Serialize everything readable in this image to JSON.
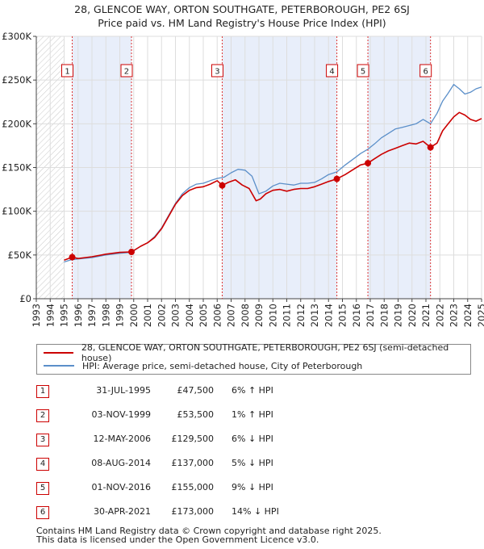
{
  "title_line1": "28, GLENCOE WAY, ORTON SOUTHGATE, PETERBOROUGH, PE2 6SJ",
  "title_line2": "Price paid vs. HM Land Registry's House Price Index (HPI)",
  "chart_data": {
    "type": "line",
    "ylim": [
      0,
      300000
    ],
    "xlim": [
      1993.0,
      2025.0
    ],
    "y_ticks": [
      0,
      50000,
      100000,
      150000,
      200000,
      250000,
      300000
    ],
    "y_tick_labels": [
      "£0",
      "£50K",
      "£100K",
      "£150K",
      "£200K",
      "£250K",
      "£300K"
    ],
    "x_ticks": [
      1993,
      1994,
      1995,
      1996,
      1997,
      1998,
      1999,
      2000,
      2001,
      2002,
      2003,
      2004,
      2005,
      2006,
      2007,
      2008,
      2009,
      2010,
      2011,
      2012,
      2013,
      2014,
      2015,
      2016,
      2017,
      2018,
      2019,
      2020,
      2021,
      2022,
      2023,
      2024,
      2025
    ],
    "x_tick_labels": [
      "1993",
      "1994",
      "1995",
      "1996",
      "1997",
      "1998",
      "1999",
      "2000",
      "2001",
      "2002",
      "2003",
      "2004",
      "2005",
      "2006",
      "2007",
      "2008",
      "2009",
      "2010",
      "2011",
      "2012",
      "2013",
      "2014",
      "2015",
      "2016",
      "2017",
      "2018",
      "2019",
      "2020",
      "2021",
      "2022",
      "2023",
      "2024",
      "2025"
    ],
    "data_start": 1995.0,
    "hatch_until": 1995.0,
    "shaded_ranges": [
      [
        1995.58,
        1999.84
      ],
      [
        2006.36,
        2014.6
      ],
      [
        2016.83,
        2021.33
      ]
    ],
    "grid": true,
    "series": [
      {
        "name": "28, GLENCOE WAY, ORTON SOUTHGATE, PETERBOROUGH, PE2 6SJ (semi-detached house)",
        "color": "#cc0000",
        "x": [
          1995.0,
          1995.58,
          1996.0,
          1997.0,
          1998.0,
          1999.0,
          1999.84,
          2000.5,
          2001.0,
          2001.5,
          2002.0,
          2002.5,
          2003.0,
          2003.5,
          2004.0,
          2004.5,
          2005.0,
          2005.5,
          2006.0,
          2006.36,
          2006.8,
          2007.3,
          2007.8,
          2008.3,
          2008.8,
          2009.1,
          2009.5,
          2010.0,
          2010.5,
          2011.0,
          2011.5,
          2012.0,
          2012.5,
          2013.0,
          2013.5,
          2014.0,
          2014.6,
          2015.2,
          2015.8,
          2016.3,
          2016.83,
          2017.3,
          2017.8,
          2018.3,
          2018.8,
          2019.3,
          2019.8,
          2020.3,
          2020.8,
          2021.33,
          2021.8,
          2022.2,
          2022.6,
          2023.0,
          2023.4,
          2023.8,
          2024.2,
          2024.6,
          2025.0
        ],
        "y": [
          44000,
          47500,
          46000,
          48000,
          51000,
          53000,
          53500,
          60000,
          64000,
          70000,
          80000,
          94000,
          108000,
          118000,
          124000,
          127000,
          128000,
          131000,
          135000,
          129500,
          133000,
          136000,
          130000,
          126000,
          112000,
          114000,
          120000,
          124000,
          125000,
          123000,
          125000,
          126000,
          126000,
          128000,
          131000,
          134000,
          137000,
          142000,
          148000,
          153000,
          155000,
          160000,
          165000,
          169000,
          172000,
          175000,
          178000,
          177000,
          180000,
          173000,
          178000,
          192000,
          200000,
          208000,
          213000,
          210000,
          205000,
          203000,
          206000
        ]
      },
      {
        "name": "HPI: Average price, semi-detached house, City of Peterborough",
        "color": "#5b8fc9",
        "x": [
          1995.0,
          1995.5,
          1996.0,
          1997.0,
          1998.0,
          1999.0,
          1999.84,
          2000.5,
          2001.0,
          2001.5,
          2002.0,
          2002.5,
          2003.0,
          2003.5,
          2004.0,
          2004.5,
          2005.0,
          2005.5,
          2006.0,
          2006.5,
          2007.0,
          2007.5,
          2008.0,
          2008.5,
          2009.0,
          2009.5,
          2010.0,
          2010.5,
          2011.0,
          2011.5,
          2012.0,
          2012.5,
          2013.0,
          2013.5,
          2014.0,
          2014.6,
          2015.2,
          2015.8,
          2016.3,
          2016.83,
          2017.3,
          2017.8,
          2018.3,
          2018.8,
          2019.3,
          2019.8,
          2020.3,
          2020.8,
          2021.33,
          2021.8,
          2022.2,
          2022.6,
          2023.0,
          2023.4,
          2023.8,
          2024.2,
          2024.6,
          2025.0
        ],
        "y": [
          42000,
          44500,
          45500,
          47000,
          50000,
          52000,
          53000,
          60000,
          64000,
          71000,
          81000,
          95000,
          109000,
          120000,
          127000,
          131000,
          132000,
          135000,
          137500,
          139000,
          144000,
          148000,
          147000,
          140000,
          120000,
          123000,
          129000,
          132000,
          131000,
          130000,
          132000,
          132000,
          133000,
          137000,
          142000,
          145000,
          153000,
          160000,
          166000,
          171000,
          177000,
          184000,
          189000,
          194000,
          196000,
          198000,
          200000,
          205000,
          200000,
          212000,
          226000,
          235000,
          245000,
          240000,
          234000,
          236000,
          240000,
          242000
        ]
      }
    ],
    "sales": [
      {
        "label": "1",
        "x": 1995.58,
        "y": 47500
      },
      {
        "label": "2",
        "x": 1999.84,
        "y": 53500
      },
      {
        "label": "3",
        "x": 2006.36,
        "y": 129500
      },
      {
        "label": "4",
        "x": 2014.6,
        "y": 137000
      },
      {
        "label": "5",
        "x": 2016.83,
        "y": 155000
      },
      {
        "label": "6",
        "x": 2021.33,
        "y": 173000
      }
    ]
  },
  "legend": {
    "red_label": "28, GLENCOE WAY, ORTON SOUTHGATE, PETERBOROUGH, PE2 6SJ (semi-detached house)",
    "blue_label": "HPI: Average price, semi-detached house, City of Peterborough"
  },
  "transactions": [
    {
      "num": "1",
      "date": "31-JUL-1995",
      "price": "£47,500",
      "rel": "6% ↑ HPI"
    },
    {
      "num": "2",
      "date": "03-NOV-1999",
      "price": "£53,500",
      "rel": "1% ↑ HPI"
    },
    {
      "num": "3",
      "date": "12-MAY-2006",
      "price": "£129,500",
      "rel": "6% ↓ HPI"
    },
    {
      "num": "4",
      "date": "08-AUG-2014",
      "price": "£137,000",
      "rel": "5% ↓ HPI"
    },
    {
      "num": "5",
      "date": "01-NOV-2016",
      "price": "£155,000",
      "rel": "9% ↓ HPI"
    },
    {
      "num": "6",
      "date": "30-APR-2021",
      "price": "£173,000",
      "rel": "14% ↓ HPI"
    }
  ],
  "footer": {
    "line1": "Contains HM Land Registry data © Crown copyright and database right 2025.",
    "line2": "This data is licensed under the Open Government Licence v3.0."
  }
}
